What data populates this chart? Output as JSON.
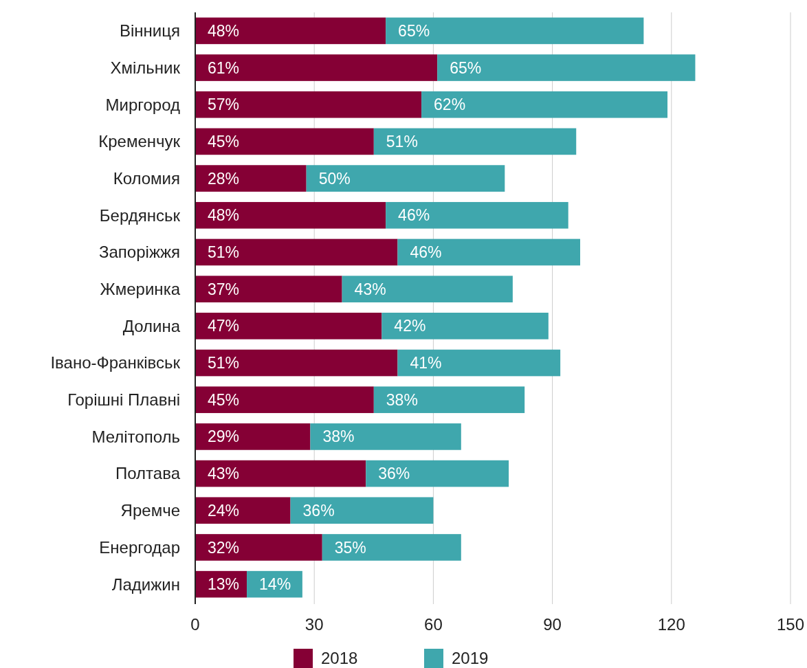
{
  "chart_data": {
    "type": "bar",
    "orientation": "horizontal",
    "stacked": true,
    "categories": [
      "Вінниця",
      "Хмільник",
      "Миргород",
      "Кременчук",
      "Коломия",
      "Бердянськ",
      "Запоріжжя",
      "Жмеринка",
      "Долина",
      "Івано-Франківськ",
      "Горішні Плавні",
      "Мелітополь",
      "Полтава",
      "Яремче",
      "Енергодар",
      "Ладижин"
    ],
    "series": [
      {
        "name": "2018",
        "color": "#850035",
        "values": [
          48,
          61,
          57,
          45,
          28,
          48,
          51,
          37,
          47,
          51,
          45,
          29,
          43,
          24,
          32,
          13
        ],
        "value_labels": [
          "48%",
          "61%",
          "57%",
          "45%",
          "28%",
          "48%",
          "51%",
          "37%",
          "47%",
          "51%",
          "45%",
          "29%",
          "43%",
          "24%",
          "32%",
          "13%"
        ]
      },
      {
        "name": "2019",
        "color": "#3fa7ad",
        "values": [
          65,
          65,
          62,
          51,
          50,
          46,
          46,
          43,
          42,
          41,
          38,
          38,
          36,
          36,
          35,
          14
        ],
        "value_labels": [
          "65%",
          "65%",
          "62%",
          "51%",
          "50%",
          "46%",
          "46%",
          "43%",
          "42%",
          "41%",
          "38%",
          "38%",
          "36%",
          "36%",
          "35%",
          "14%"
        ]
      }
    ],
    "xlim": [
      0,
      150
    ],
    "xticks": [
      0,
      30,
      60,
      90,
      120,
      150
    ],
    "grid": "x",
    "legend": "bottom"
  }
}
